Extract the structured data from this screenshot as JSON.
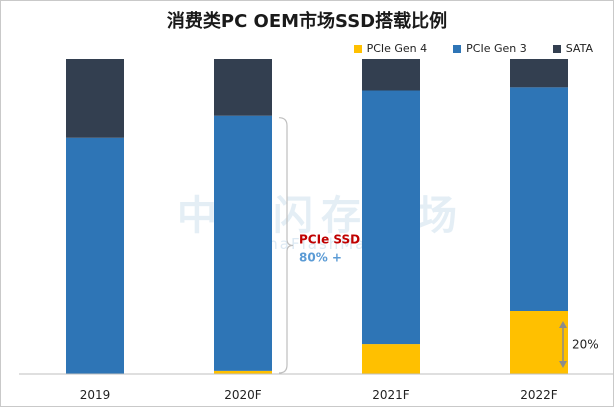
{
  "chart_data": {
    "type": "bar",
    "stacked": true,
    "title": "消费类PC OEM市场SSD搭载比例",
    "categories": [
      "2019",
      "2020F",
      "2021F",
      "2022F"
    ],
    "series": [
      {
        "name": "PCIe Gen 4",
        "color": "#ffc000",
        "values": [
          0,
          1,
          9.5,
          20
        ]
      },
      {
        "name": "PCIe Gen 3",
        "color": "#2e75b6",
        "values": [
          75,
          81,
          80.5,
          71
        ]
      },
      {
        "name": "SATA",
        "color": "#333f50",
        "values": [
          25,
          18,
          10,
          9
        ]
      }
    ],
    "ylim": [
      0,
      100
    ],
    "grid": false,
    "legend": "top-right",
    "annotations": {
      "pcie_label": "PCIe SSD",
      "pcie_value": "80% +",
      "gen4_value": "20%"
    }
  },
  "watermark": {
    "cn": "中国闪存市场",
    "en": "ChinaFlashMarket"
  }
}
